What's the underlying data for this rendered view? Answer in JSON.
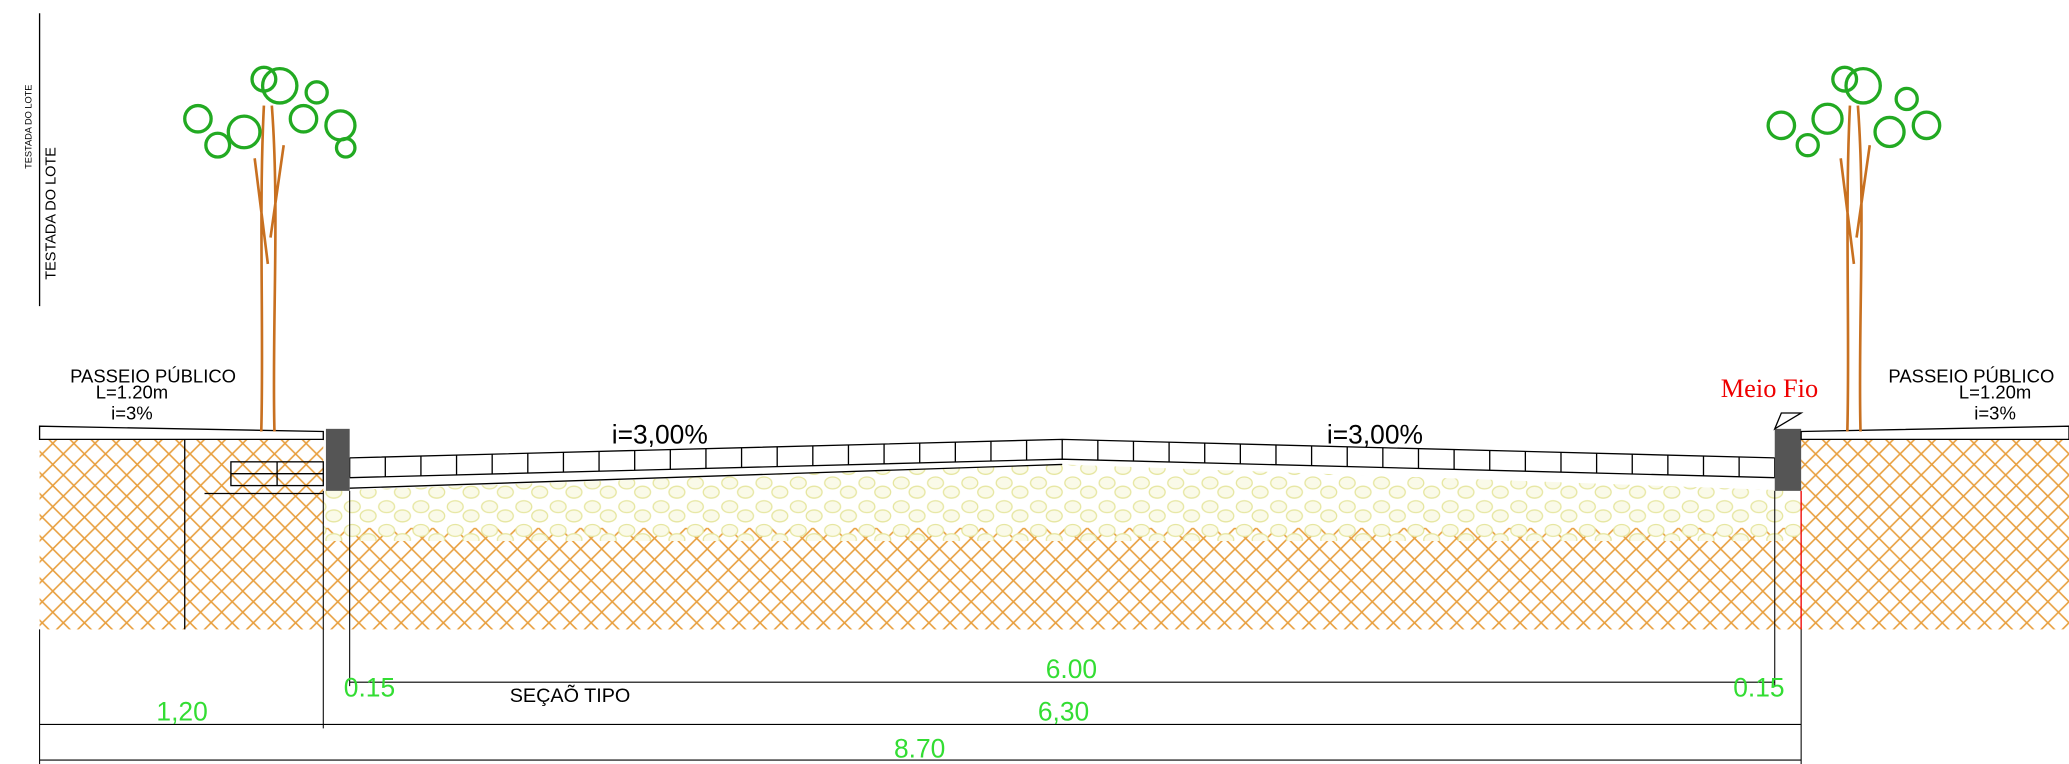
{
  "lot_front": [
    "TESTADA DO LOTE",
    "TESTADA DO LOTE"
  ],
  "sidewalks": [
    {
      "title": "PASSEIO PÚBLICO",
      "width": "L=1.20m",
      "slope": "i=3%"
    },
    {
      "title": "PASSEIO PÚBLICO",
      "width": "L=1.20m",
      "slope": "i=3%"
    }
  ],
  "road_slopes": [
    "i=3,00%",
    "i=3,00%"
  ],
  "curb_label": "Meio Fio",
  "section_title": "SEÇAÕ TIPO",
  "dimensions": {
    "road": "6.00",
    "curb_left": "0.15",
    "curb_right": "0.15",
    "sidewalk": "1,20",
    "road_total": "6,30",
    "total": "8.70"
  }
}
